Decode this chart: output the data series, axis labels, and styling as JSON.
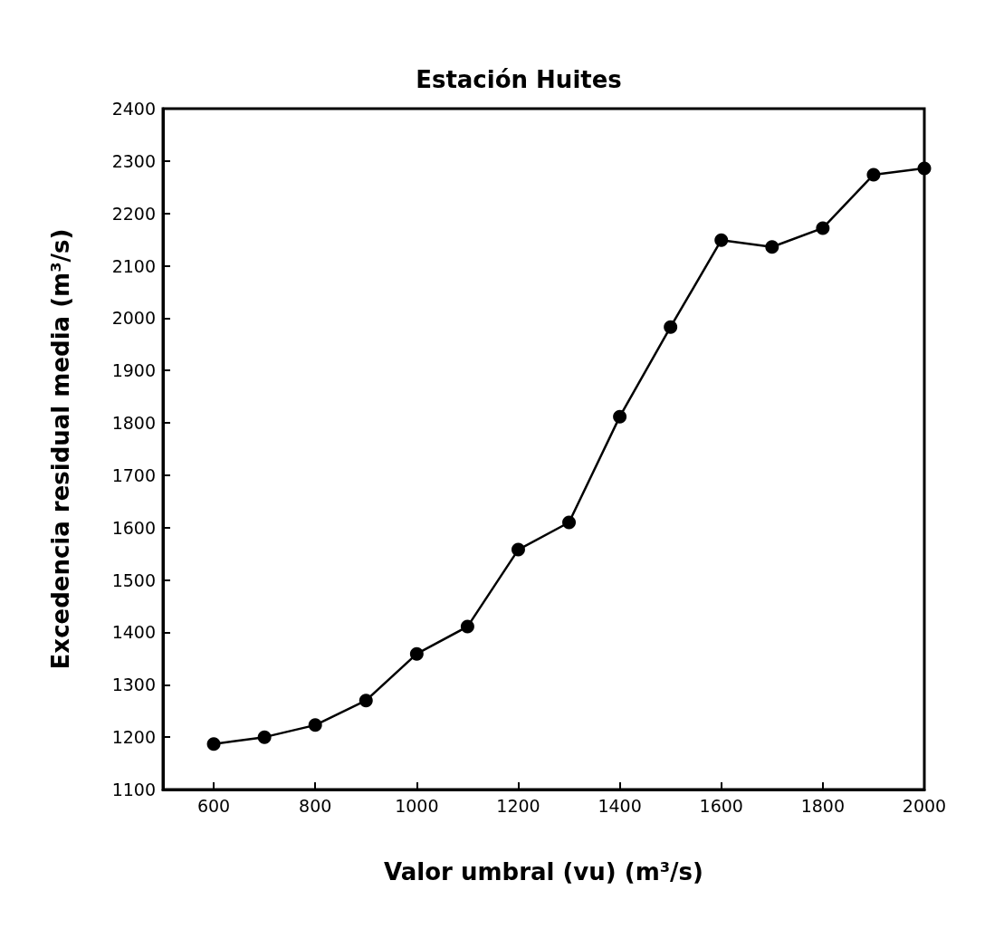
{
  "chart_data": {
    "type": "line",
    "title": "Estación Huites",
    "xlabel": "Valor umbral (vu) (m³/s)",
    "ylabel": "Excedencia residual media (m³/s)",
    "x": [
      600,
      700,
      800,
      900,
      1000,
      1100,
      1200,
      1300,
      1400,
      1500,
      1600,
      1700,
      1800,
      1900,
      2000
    ],
    "series": [
      {
        "color": "#000000",
        "values": [
          1187,
          1200,
          1223,
          1270,
          1359,
          1411,
          1558,
          1610,
          1812,
          1983,
          2149,
          2136,
          2172,
          2274,
          2286
        ]
      }
    ],
    "xlim": [
      500,
      2000
    ],
    "xticks": [
      600,
      800,
      1000,
      1200,
      1400,
      1600,
      1800,
      2000
    ],
    "ylim": [
      1100,
      2400
    ],
    "yticks": [
      1100,
      1200,
      1300,
      1400,
      1500,
      1600,
      1700,
      1800,
      1900,
      2000,
      2100,
      2200,
      2300,
      2400
    ],
    "marker": "circle",
    "line_style": "solid"
  }
}
